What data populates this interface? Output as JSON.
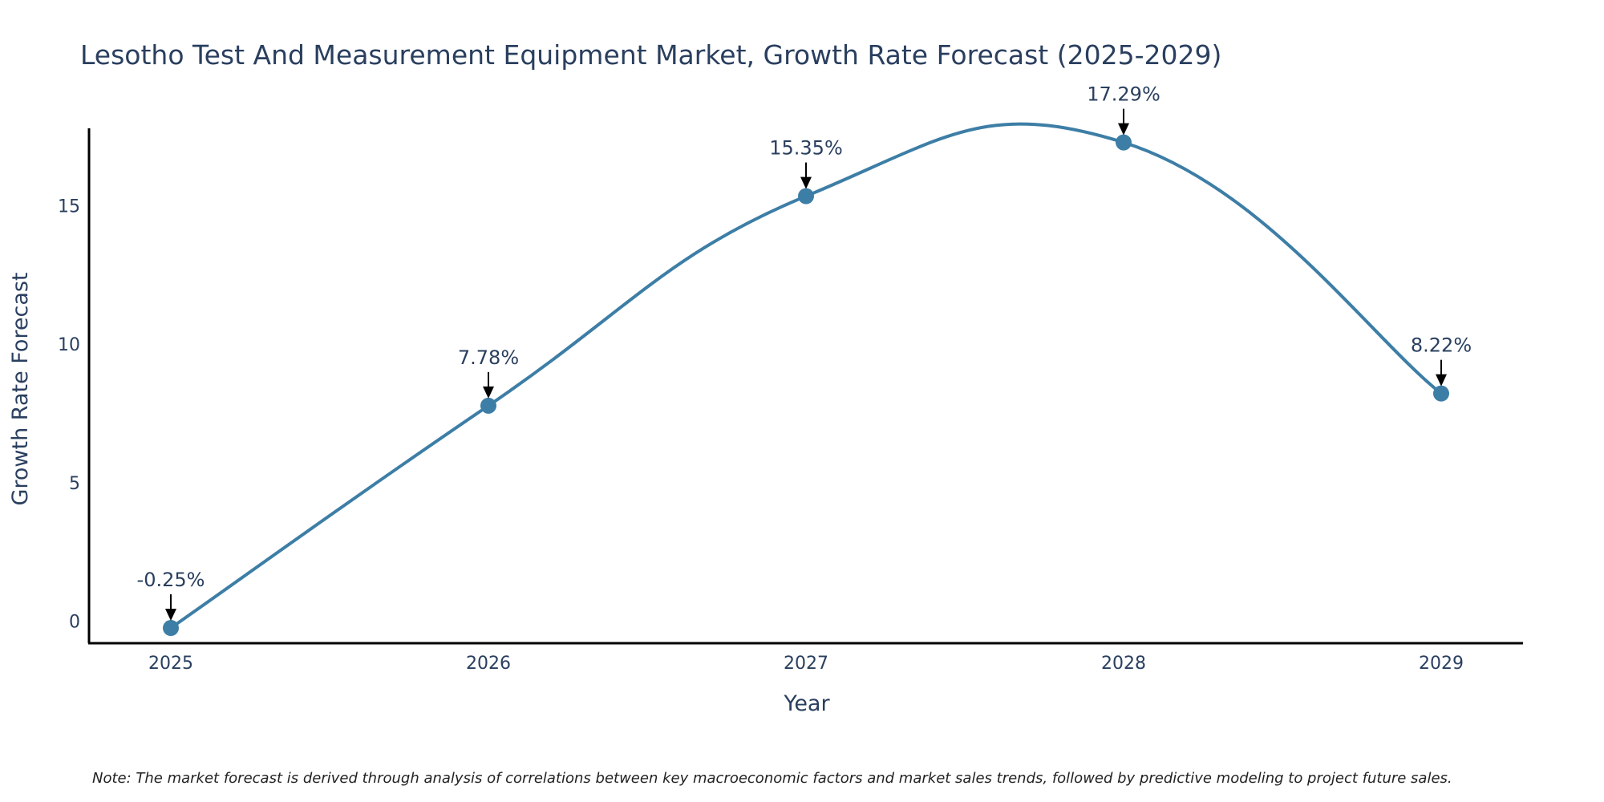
{
  "colors": {
    "line": "#3d7ea6",
    "marker": "#3d7ea6",
    "axis": "#000000",
    "text": "#2a3f5f",
    "arrow": "#000000"
  },
  "chart_data": {
    "type": "line",
    "title": "Lesotho Test And Measurement Equipment Market, Growth Rate Forecast (2025-2029)",
    "xlabel": "Year",
    "ylabel": "Growth Rate Forecast",
    "x": [
      "2025",
      "2026",
      "2027",
      "2028",
      "2029"
    ],
    "series": [
      {
        "name": "Growth Rate Forecast",
        "values": [
          -0.25,
          7.78,
          15.35,
          17.29,
          8.22
        ]
      }
    ],
    "data_labels": [
      "-0.25%",
      "7.78%",
      "15.35%",
      "17.29%",
      "8.22%"
    ],
    "yticks": [
      0,
      5,
      10,
      15
    ],
    "ylim": [
      -0.8,
      17.8
    ],
    "line_shape": "spline",
    "grid": false,
    "note": "Note: The market forecast is derived through analysis of correlations between key macroeconomic factors and market sales trends, followed by predictive modeling to project future sales."
  }
}
